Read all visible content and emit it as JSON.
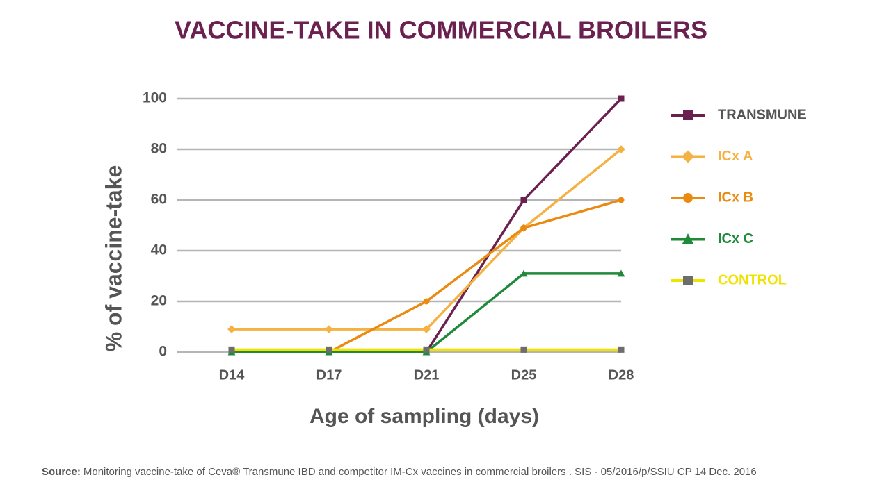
{
  "chart_data": {
    "type": "line",
    "title": "VACCINE-TAKE IN COMMERCIAL BROILERS",
    "x_label": "Age of sampling (days)",
    "y_label": "% of vaccine-take",
    "categories": [
      "D14",
      "D17",
      "D21",
      "D25",
      "D28"
    ],
    "series": [
      {
        "name": "TRANSMUNE",
        "color": "#6b2150",
        "marker": "square",
        "values": [
          0,
          0,
          0,
          60,
          100
        ]
      },
      {
        "name": "ICx A",
        "color": "#f5b142",
        "marker": "diamond",
        "values": [
          9,
          9,
          9,
          49,
          80
        ]
      },
      {
        "name": "ICx B",
        "color": "#ea8a10",
        "marker": "circle",
        "values": [
          0,
          0,
          20,
          49,
          60
        ]
      },
      {
        "name": "ICx C",
        "color": "#1f8a3a",
        "marker": "triangle",
        "values": [
          0,
          0,
          0,
          31,
          31
        ]
      },
      {
        "name": "CONTROL",
        "color": "#f2e200",
        "marker": "square",
        "marker_color": "#6d6d6d",
        "values": [
          1,
          1,
          1,
          1,
          1
        ]
      }
    ],
    "ylim": [
      0,
      100
    ],
    "yticks": [
      0,
      20,
      40,
      60,
      80,
      100
    ],
    "grid": true,
    "source_label": "Source:",
    "source_text": "Monitoring vaccine-take of Ceva® Transmune IBD and competitor IM-Cx vaccines in commercial broilers . SIS - 05/2016/p/SSIU CP 14 Dec. 2016"
  }
}
